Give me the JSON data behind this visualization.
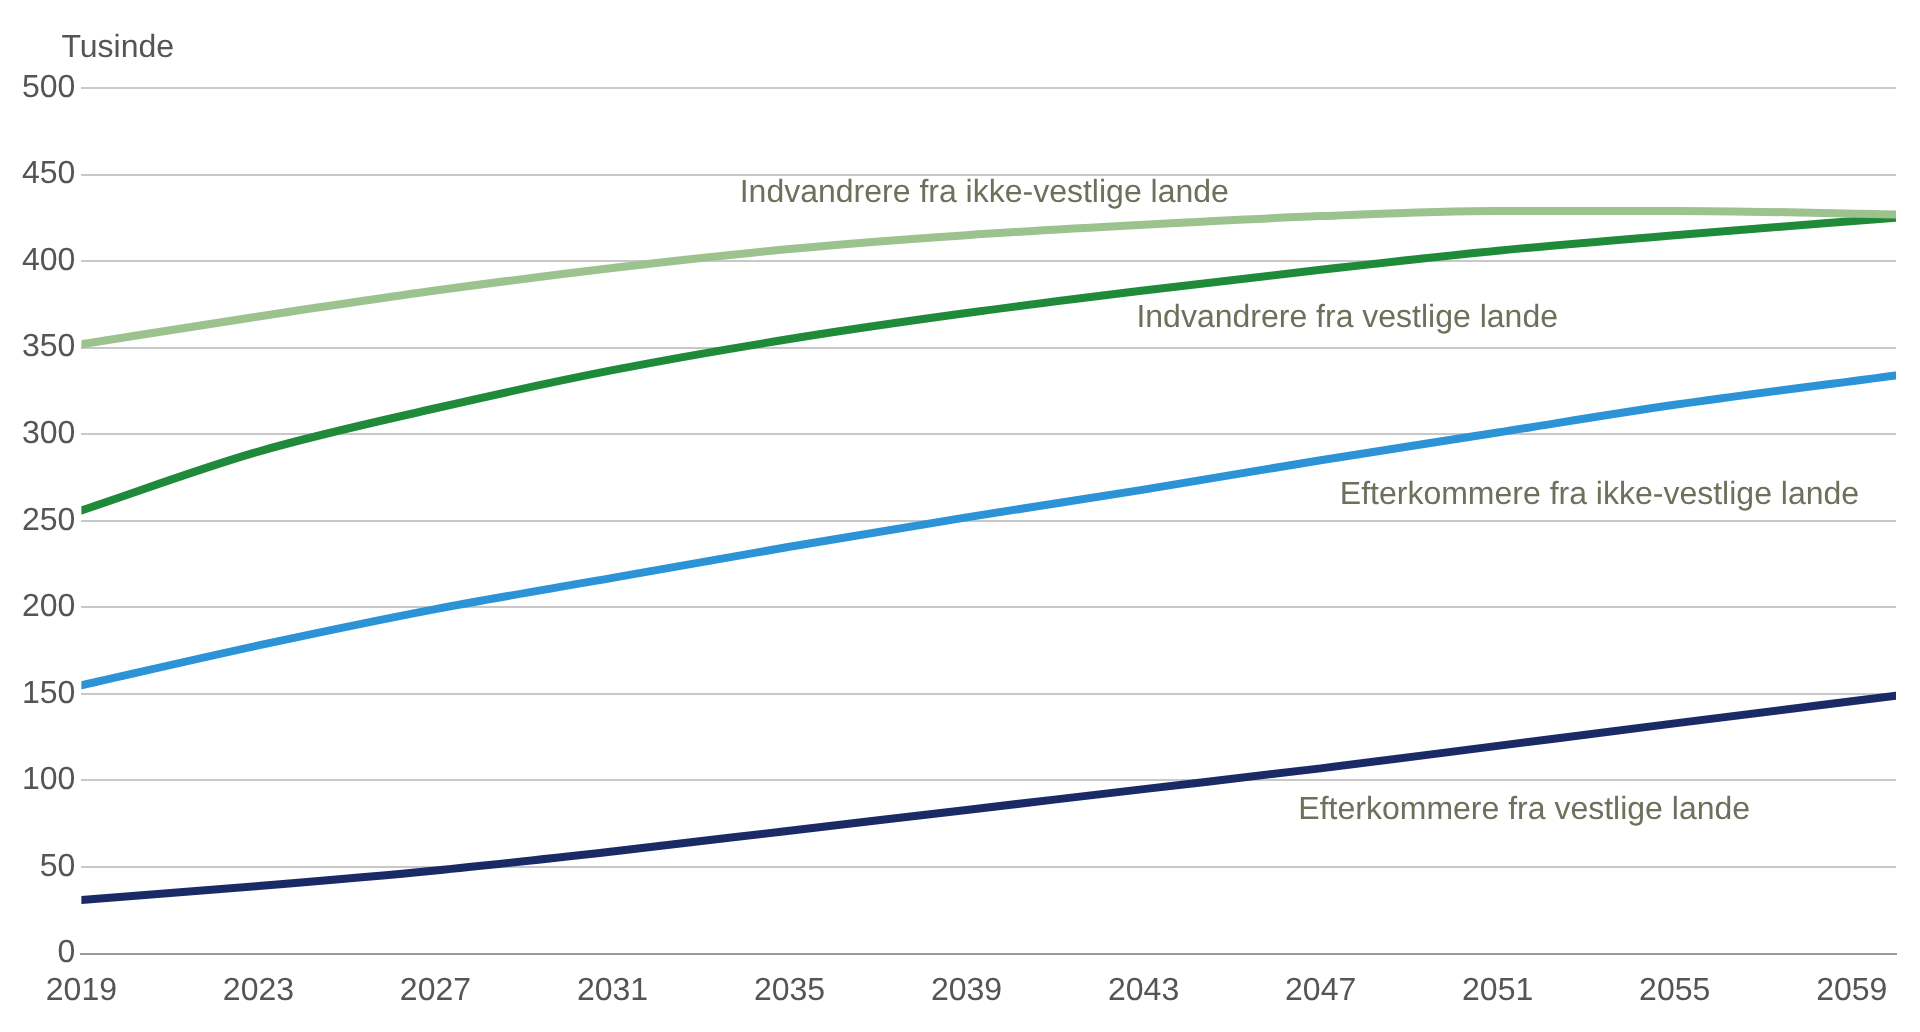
{
  "chart_data": {
    "type": "line",
    "ylabel": "Tusinde",
    "x": [
      2019,
      2023,
      2027,
      2031,
      2035,
      2039,
      2043,
      2047,
      2051,
      2055,
      2060
    ],
    "series": [
      {
        "name": "Indvandrere fra ikke-vestlige lande",
        "color": "#9cc28e",
        "values": [
          352,
          368,
          383,
          396,
          407,
          415,
          421,
          426,
          429,
          429,
          427
        ]
      },
      {
        "name": "Indvandrere fra vestlige lande",
        "color": "#1e8a3a",
        "values": [
          256,
          290,
          315,
          337,
          355,
          370,
          383,
          395,
          406,
          415,
          425
        ]
      },
      {
        "name": "Efterkommere fra ikke-vestlige lande",
        "color": "#2b93d6",
        "values": [
          155,
          178,
          199,
          217,
          235,
          252,
          268,
          285,
          301,
          317,
          334
        ]
      },
      {
        "name": "Efterkommere fra vestlige lande",
        "color": "#1a2a66",
        "values": [
          31,
          39,
          48,
          59,
          71,
          83,
          95,
          107,
          120,
          133,
          149
        ]
      }
    ],
    "xlim": [
      2019,
      2060
    ],
    "xticks": [
      2019,
      2023,
      2027,
      2031,
      2035,
      2039,
      2043,
      2047,
      2051,
      2055,
      2059
    ],
    "ylim": [
      0,
      500
    ],
    "yticks": [
      0,
      50,
      100,
      150,
      200,
      250,
      300,
      350,
      400,
      450,
      500
    ],
    "grid": "y",
    "legend": false,
    "marker": "none",
    "line_style": "solid"
  }
}
